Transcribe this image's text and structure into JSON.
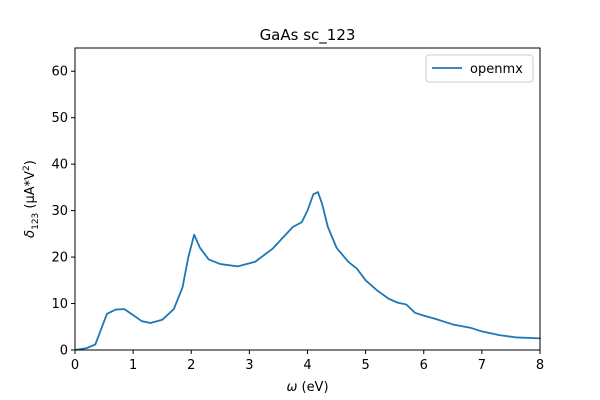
{
  "chart_data": {
    "type": "line",
    "title": "GaAs sc_123",
    "xlabel_symbol": "ω",
    "xlabel_unit": " (eV)",
    "ylabel_symbol": "δ",
    "ylabel_sub": "123",
    "ylabel_unit": " (μA*V",
    "ylabel_sup": "2",
    "ylabel_close": ")",
    "xlim": [
      0,
      8
    ],
    "ylim": [
      0,
      65
    ],
    "x_ticks": [
      0,
      1,
      2,
      3,
      4,
      5,
      6,
      7,
      8
    ],
    "y_ticks": [
      0,
      10,
      20,
      30,
      40,
      50,
      60
    ],
    "grid": false,
    "legend_position": "top-right",
    "series": [
      {
        "name": "openmx",
        "color": "#1f77b4",
        "x": [
          0,
          0.2,
          0.35,
          0.45,
          0.55,
          0.7,
          0.85,
          1.0,
          1.15,
          1.3,
          1.5,
          1.7,
          1.85,
          1.95,
          2.05,
          2.15,
          2.3,
          2.5,
          2.8,
          3.1,
          3.4,
          3.6,
          3.75,
          3.9,
          4.0,
          4.1,
          4.18,
          4.25,
          4.35,
          4.5,
          4.7,
          4.85,
          5.0,
          5.2,
          5.4,
          5.55,
          5.7,
          5.85,
          6.0,
          6.2,
          6.5,
          6.8,
          7.0,
          7.3,
          7.6,
          8.0
        ],
        "y": [
          0,
          0.4,
          1.2,
          4.5,
          7.8,
          8.7,
          8.8,
          7.5,
          6.2,
          5.8,
          6.5,
          8.8,
          13.5,
          20.0,
          24.8,
          22.0,
          19.5,
          18.5,
          18.0,
          19.0,
          21.8,
          24.5,
          26.5,
          27.5,
          30.0,
          33.5,
          34.0,
          31.5,
          26.5,
          22.0,
          19.0,
          17.5,
          15.0,
          12.8,
          11.0,
          10.2,
          9.8,
          8.0,
          7.4,
          6.7,
          5.5,
          4.8,
          4.0,
          3.2,
          2.7,
          2.5
        ]
      }
    ]
  }
}
